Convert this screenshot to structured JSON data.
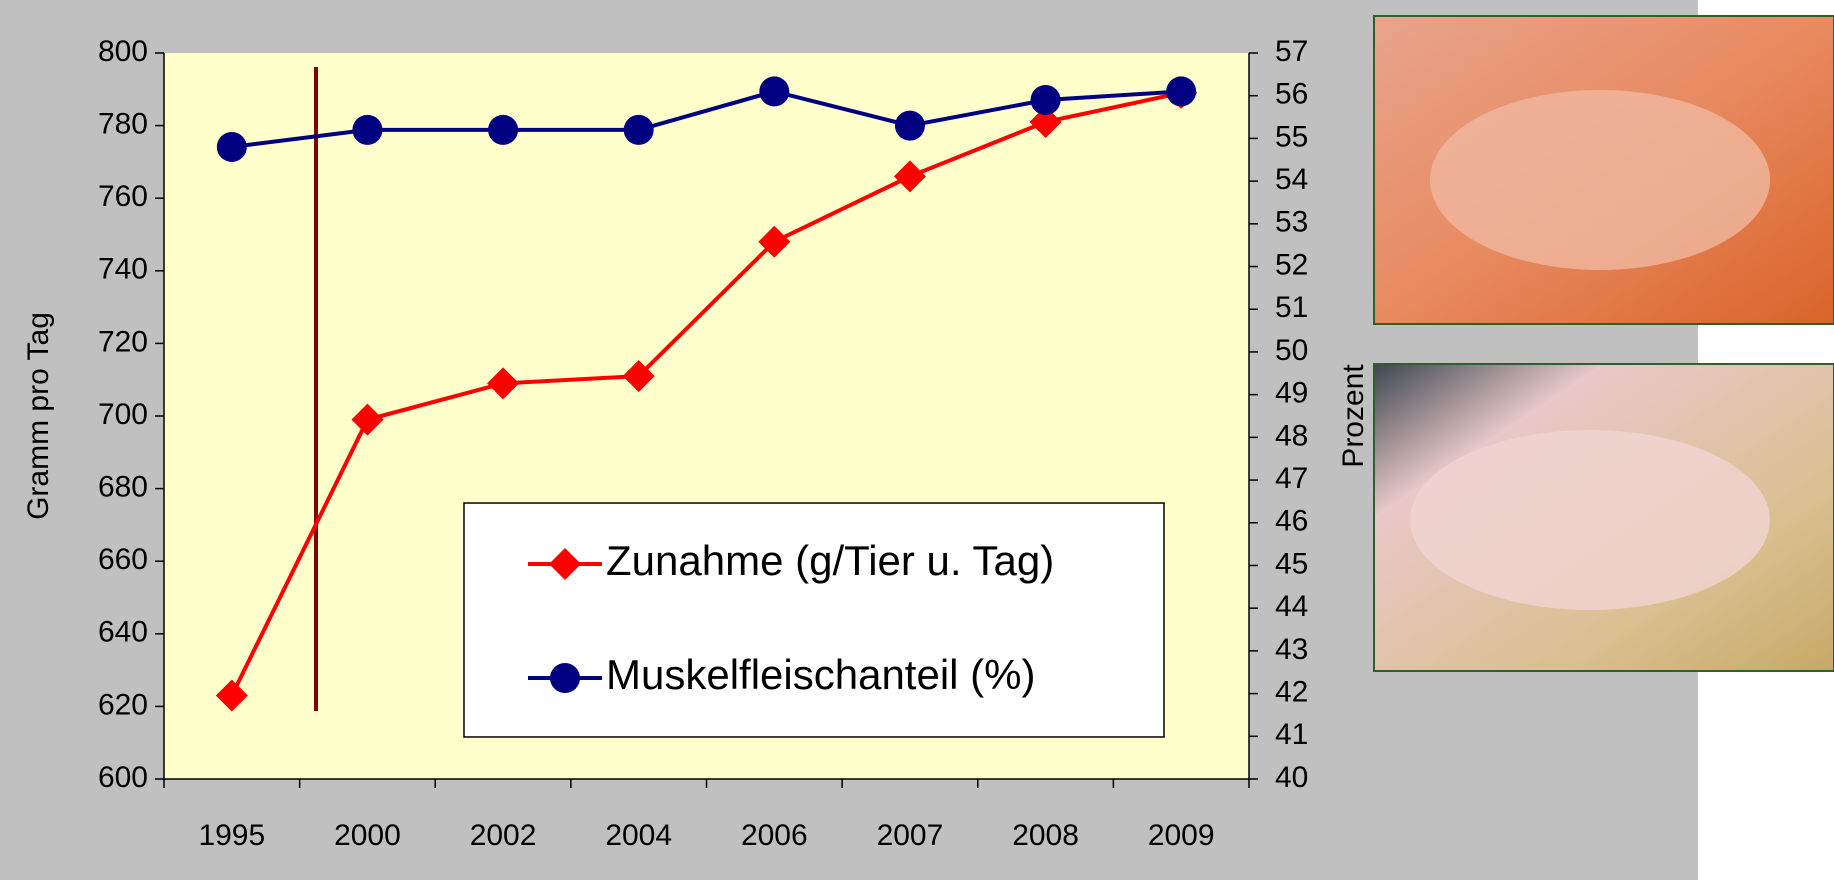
{
  "chart_data": {
    "type": "line",
    "categories": [
      "1995",
      "2000",
      "2002",
      "2004",
      "2006",
      "2007",
      "2008",
      "2009"
    ],
    "ylabel": "Gramm pro Tag",
    "y2label": "Prozent",
    "ylim": [
      600,
      800
    ],
    "yticks": [
      600,
      620,
      640,
      660,
      680,
      700,
      720,
      740,
      760,
      780,
      800
    ],
    "y2lim": [
      40,
      57
    ],
    "y2ticks": [
      40,
      41,
      42,
      43,
      44,
      45,
      46,
      47,
      48,
      49,
      50,
      51,
      52,
      53,
      54,
      55,
      56,
      57
    ],
    "series": [
      {
        "name": "Zunahme (g/Tier u. Tag)",
        "color": "#ff0000",
        "marker": "diamond",
        "values": [
          623,
          699,
          709,
          711,
          748,
          766,
          781,
          789
        ]
      },
      {
        "name": "Muskelfleischanteil (%)",
        "color": "#000080",
        "marker": "circle",
        "axis": "y2",
        "values": [
          54.8,
          55.2,
          55.2,
          55.2,
          56.1,
          55.3,
          55.9,
          56.1
        ]
      }
    ]
  }
}
